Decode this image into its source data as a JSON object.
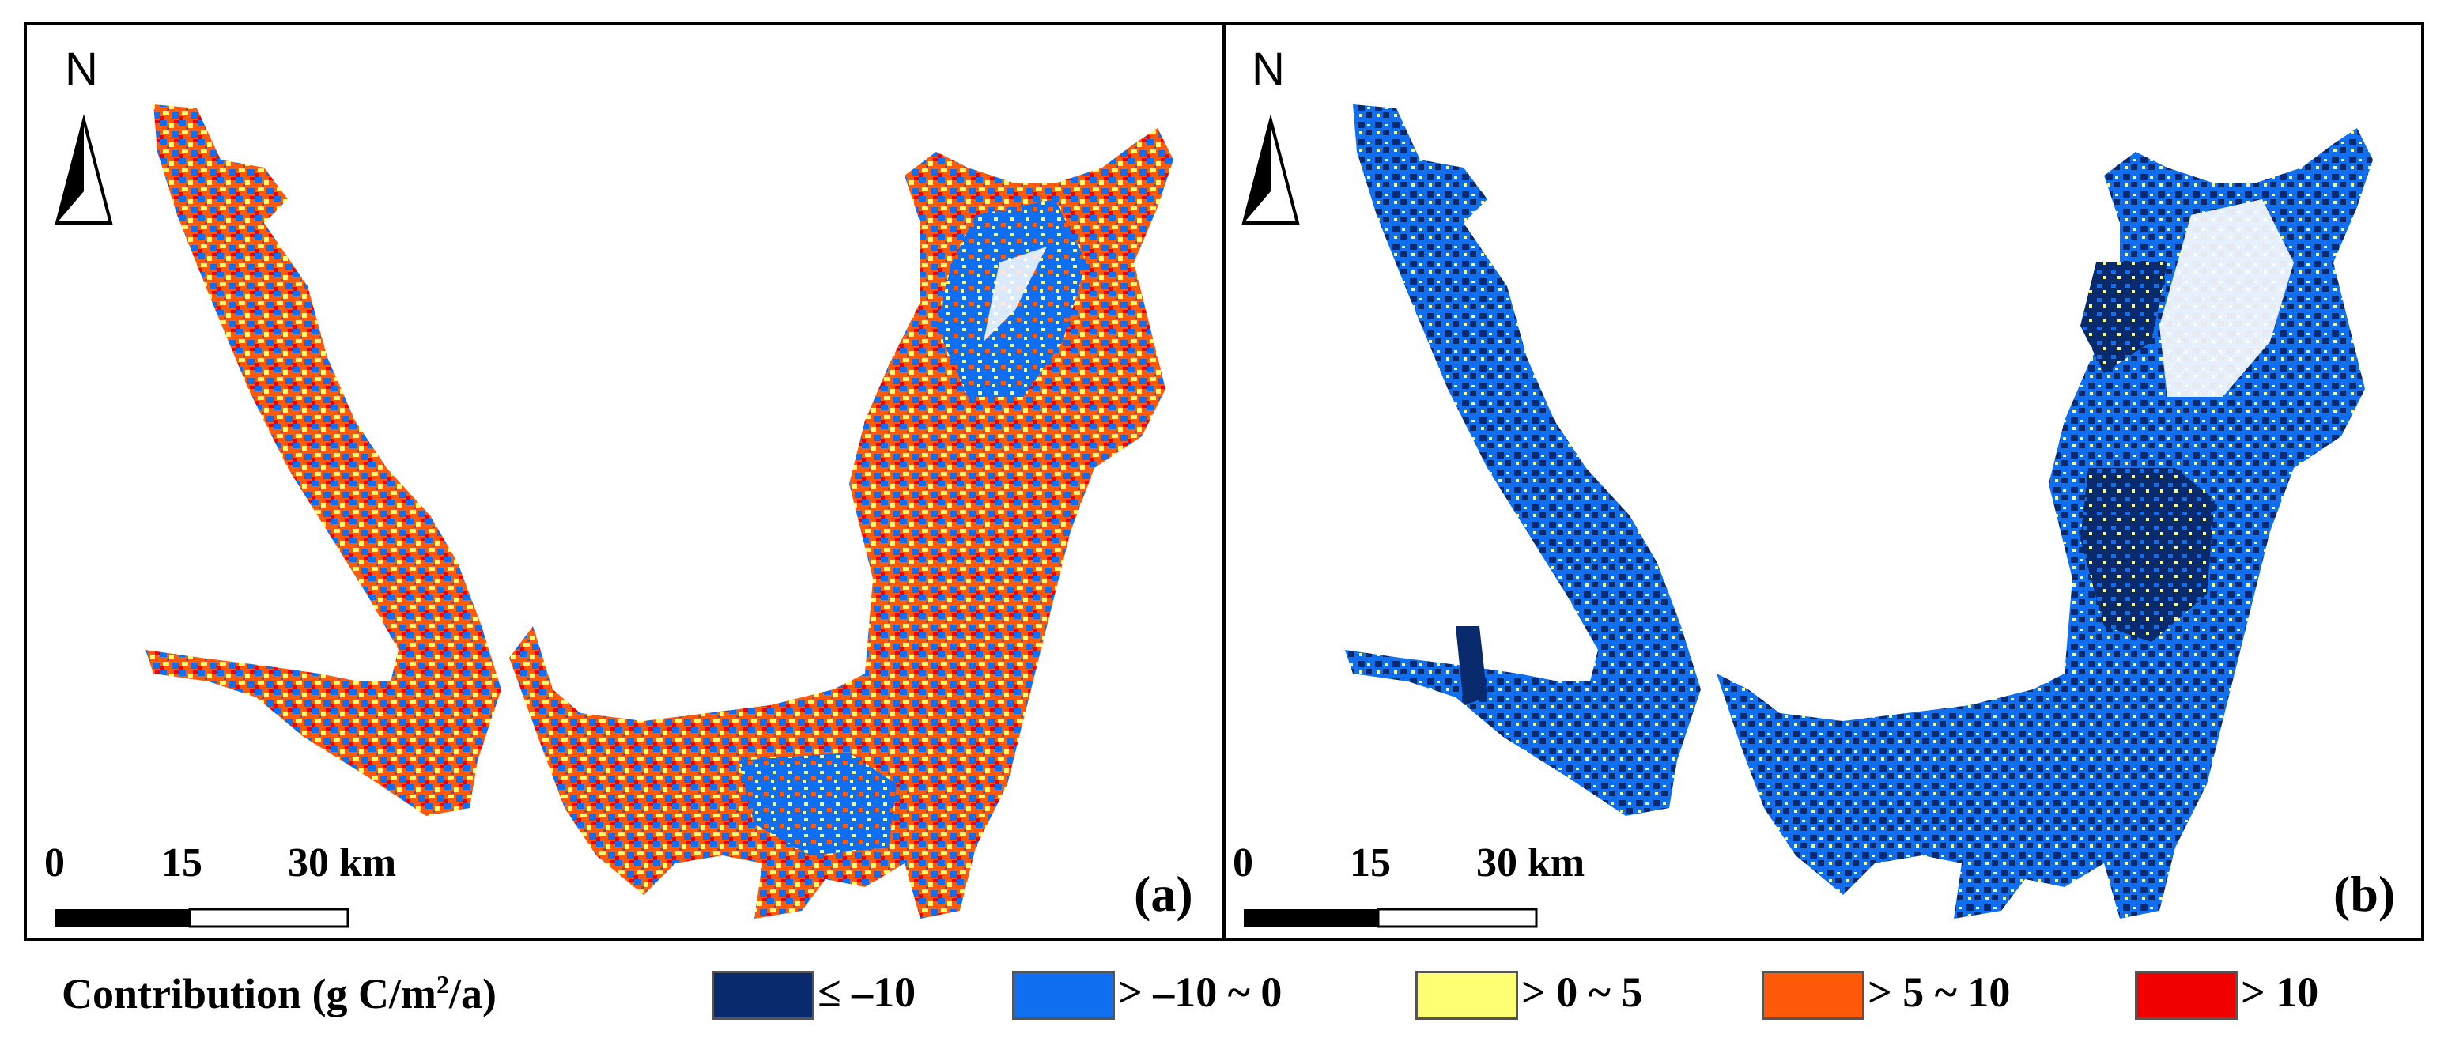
{
  "panels": [
    {
      "label": "(a)",
      "north": "N",
      "scale": {
        "t0": "0",
        "t1": "15",
        "t2": "30 km"
      }
    },
    {
      "label": "(b)",
      "north": "N",
      "scale": {
        "t0": "0",
        "t1": "15",
        "t2": "30 km"
      }
    }
  ],
  "legend": {
    "title_pre": "Contribution (g C/m",
    "title_sup": "2",
    "title_post": "/a)",
    "classes": [
      {
        "label": "≤ –10",
        "color": "#0a2a6e"
      },
      {
        "label": "> –10 ~ 0",
        "color": "#0f6ff0"
      },
      {
        "label": "> 0 ~ 5",
        "color": "#ffff73"
      },
      {
        "label": "> 5 ~ 10",
        "color": "#ff5a0a"
      },
      {
        "label": "> 10",
        "color": "#f00000"
      }
    ]
  }
}
